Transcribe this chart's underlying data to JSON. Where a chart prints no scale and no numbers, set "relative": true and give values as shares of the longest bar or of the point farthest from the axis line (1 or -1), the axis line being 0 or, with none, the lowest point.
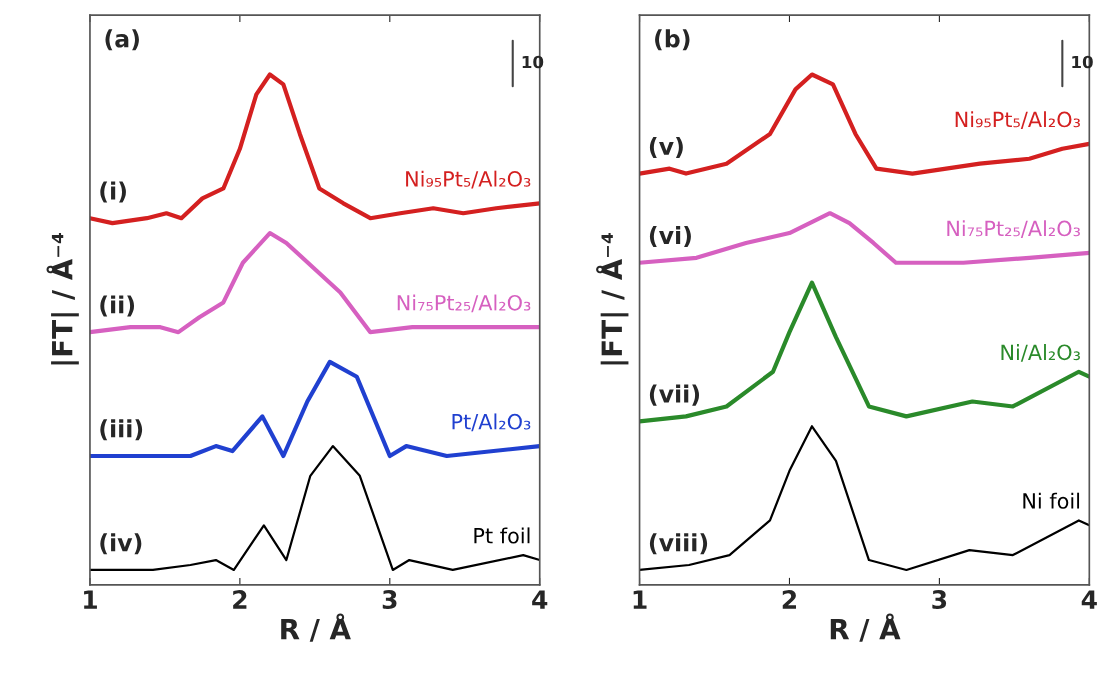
{
  "chart_data": [
    {
      "type": "line",
      "title": "(a)",
      "xlabel": "R / Å",
      "ylabel": "|FT| / Å⁻⁴",
      "relative": true,
      "xlim": [
        1,
        4
      ],
      "xticks": [
        1,
        2,
        3,
        4
      ],
      "grid": false,
      "legend": false,
      "annotations": [
        "10",
        "(i)",
        "(ii)",
        "(iii)",
        "(iv)"
      ],
      "series": [
        {
          "name": "Ni₉₅Pt₅/Al₂O₃",
          "color": "#d42020",
          "x": [
            1.0,
            1.15,
            1.38,
            1.51,
            1.61,
            1.75,
            1.89,
            2.0,
            2.11,
            2.2,
            2.29,
            2.4,
            2.53,
            2.69,
            2.87,
            3.07,
            3.29,
            3.49,
            3.71,
            4.0
          ],
          "values": [
            0.71,
            0.7,
            0.71,
            0.72,
            0.71,
            0.75,
            0.77,
            0.85,
            0.96,
            1.0,
            0.98,
            0.88,
            0.77,
            0.74,
            0.71,
            0.72,
            0.73,
            0.72,
            0.73,
            0.74
          ]
        },
        {
          "name": "Ni₇₅Pt₂₅/Al₂O₃",
          "color": "#d660c0",
          "x": [
            1.0,
            1.27,
            1.47,
            1.59,
            1.73,
            1.89,
            2.02,
            2.2,
            2.31,
            2.49,
            2.67,
            2.87,
            3.15,
            3.49,
            4.0
          ],
          "values": [
            0.48,
            0.49,
            0.49,
            0.48,
            0.51,
            0.54,
            0.62,
            0.68,
            0.66,
            0.61,
            0.56,
            0.48,
            0.49,
            0.49,
            0.49
          ]
        },
        {
          "name": "Pt/Al₂O₃",
          "color": "#2040d0",
          "x": [
            1.0,
            1.42,
            1.67,
            1.84,
            1.95,
            2.15,
            2.29,
            2.45,
            2.6,
            2.78,
            3.0,
            3.11,
            3.38,
            4.0
          ],
          "values": [
            0.23,
            0.23,
            0.23,
            0.25,
            0.24,
            0.31,
            0.23,
            0.34,
            0.42,
            0.39,
            0.23,
            0.25,
            0.23,
            0.25
          ]
        },
        {
          "name": "Pt foil",
          "color": "#000000",
          "x": [
            1.0,
            1.42,
            1.67,
            1.84,
            1.96,
            2.16,
            2.31,
            2.47,
            2.62,
            2.8,
            3.02,
            3.13,
            3.42,
            3.89,
            4.0
          ],
          "values": [
            0.0,
            0.0,
            0.01,
            0.02,
            0.0,
            0.09,
            0.02,
            0.19,
            0.25,
            0.19,
            0.0,
            0.02,
            0.0,
            0.03,
            0.02
          ]
        }
      ]
    },
    {
      "type": "line",
      "title": "(b)",
      "xlabel": "R / Å",
      "ylabel": "|FT| / Å⁻⁴",
      "relative": true,
      "xlim": [
        1,
        4
      ],
      "xticks": [
        1,
        2,
        3,
        4
      ],
      "grid": false,
      "legend": false,
      "annotations": [
        "10",
        "(v)",
        "(vi)",
        "(vii)",
        "(viii)"
      ],
      "series": [
        {
          "name": "Ni₉₅Pt₅/Al₂O₃",
          "color": "#d42020",
          "x": [
            1.0,
            1.2,
            1.31,
            1.58,
            1.87,
            2.04,
            2.15,
            2.29,
            2.44,
            2.58,
            2.82,
            3.27,
            3.6,
            3.82,
            4.0
          ],
          "values": [
            0.8,
            0.81,
            0.8,
            0.82,
            0.88,
            0.97,
            1.0,
            0.98,
            0.88,
            0.81,
            0.8,
            0.82,
            0.83,
            0.85,
            0.86
          ]
        },
        {
          "name": "Ni₇₅Pt₂₅/Al₂O₃",
          "color": "#d660c0",
          "x": [
            1.0,
            1.38,
            1.71,
            2.0,
            2.27,
            2.4,
            2.56,
            2.71,
            3.16,
            3.6,
            4.0
          ],
          "values": [
            0.62,
            0.63,
            0.66,
            0.68,
            0.72,
            0.7,
            0.66,
            0.62,
            0.62,
            0.63,
            0.64
          ]
        },
        {
          "name": "Ni/Al₂O₃",
          "color": "#2a8a2a",
          "x": [
            1.0,
            1.31,
            1.58,
            1.89,
            2.0,
            2.15,
            2.31,
            2.53,
            2.78,
            3.22,
            3.49,
            3.93,
            4.0
          ],
          "values": [
            0.3,
            0.31,
            0.33,
            0.4,
            0.48,
            0.58,
            0.47,
            0.33,
            0.31,
            0.34,
            0.33,
            0.4,
            0.39
          ]
        },
        {
          "name": "Ni foil",
          "color": "#000000",
          "x": [
            1.0,
            1.33,
            1.6,
            1.87,
            2.0,
            2.15,
            2.31,
            2.53,
            2.78,
            3.2,
            3.49,
            3.93,
            4.0
          ],
          "values": [
            0.0,
            0.01,
            0.03,
            0.1,
            0.2,
            0.29,
            0.22,
            0.02,
            0.0,
            0.04,
            0.03,
            0.1,
            0.09
          ]
        }
      ]
    }
  ]
}
